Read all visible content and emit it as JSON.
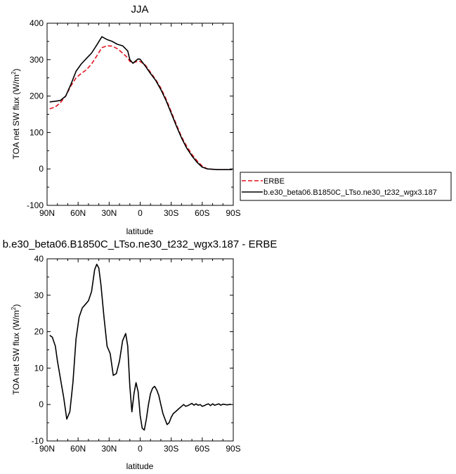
{
  "chart_data": [
    {
      "type": "line",
      "title": "JJA",
      "xlabel": "latitude",
      "ylabel": "TOA net SW flux (W/m",
      "ylabel_sup": "2",
      "ylabel_end": ")",
      "x_tick_labels": [
        "90N",
        "60N",
        "30N",
        "0",
        "30S",
        "60S",
        "90S"
      ],
      "y_tick_labels": [
        "-100",
        "0",
        "100",
        "200",
        "300",
        "400"
      ],
      "xlim": [
        90,
        -90
      ],
      "ylim": [
        -100,
        400
      ],
      "grid": false,
      "legend_position": "right",
      "series": [
        {
          "name": "ERBE",
          "color": "#e0141e",
          "dash": "dashed",
          "x": [
            87.5,
            82,
            77,
            72,
            67,
            62,
            57,
            52,
            47,
            42,
            37,
            32,
            27,
            22,
            17,
            12,
            10,
            7,
            5,
            2,
            0,
            -5,
            -10,
            -15,
            -20,
            -25,
            -30,
            -35,
            -40,
            -45,
            -50,
            -55,
            -60,
            -65,
            -70,
            -75,
            -80,
            -85,
            -89
          ],
          "y": [
            165,
            170,
            182,
            200,
            228,
            250,
            262,
            272,
            288,
            310,
            333,
            338,
            337,
            330,
            318,
            305,
            295,
            292,
            293,
            296,
            295,
            285,
            265,
            245,
            222,
            192,
            157,
            122,
            88,
            62,
            40,
            22,
            8,
            0,
            -1,
            -2,
            -2,
            -2,
            -2
          ]
        },
        {
          "name": "b.e30_beta06.B1850C_LTso.ne30_t232_wgx3.187",
          "color": "#000000",
          "dash": "solid",
          "x": [
            87.5,
            82,
            77,
            72,
            67,
            62,
            57,
            52,
            47,
            42,
            37,
            32,
            27,
            22,
            17,
            12,
            10,
            7,
            5,
            2,
            0,
            -5,
            -10,
            -15,
            -20,
            -25,
            -30,
            -35,
            -40,
            -45,
            -50,
            -55,
            -60,
            -65,
            -70,
            -75,
            -80,
            -85,
            -89
          ],
          "y": [
            184,
            186,
            188,
            200,
            232,
            268,
            288,
            303,
            318,
            340,
            363,
            355,
            350,
            342,
            338,
            324,
            300,
            290,
            295,
            302,
            301,
            282,
            262,
            243,
            218,
            188,
            153,
            118,
            85,
            57,
            36,
            18,
            5,
            0,
            -1,
            -2,
            -2,
            -2,
            -2
          ]
        }
      ]
    },
    {
      "type": "line",
      "title": "b.e30_beta06.B1850C_LTso.ne30_t232_wgx3.187 - ERBE",
      "xlabel": "latitude",
      "ylabel": "TOA net SW flux (W/m",
      "ylabel_sup": "2",
      "ylabel_end": ")",
      "x_tick_labels": [
        "90N",
        "60N",
        "30N",
        "0",
        "30S",
        "60S",
        "90S"
      ],
      "y_tick_labels": [
        "-10",
        "0",
        "10",
        "20",
        "30",
        "40"
      ],
      "xlim": [
        90,
        -90
      ],
      "ylim": [
        -10,
        40
      ],
      "grid": false,
      "series": [
        {
          "color": "#000000",
          "dash": "solid",
          "x": [
            87.5,
            85,
            82,
            80,
            77,
            74,
            71,
            68,
            65,
            62,
            59,
            56,
            53,
            50,
            47,
            44,
            42,
            40,
            38,
            35,
            32,
            29,
            26,
            23,
            20,
            17,
            14,
            12,
            10,
            8,
            6,
            4,
            2,
            0,
            -2,
            -4,
            -6,
            -8,
            -10,
            -12,
            -14,
            -16,
            -18,
            -20,
            -22,
            -24,
            -26,
            -28,
            -30,
            -32,
            -34,
            -36,
            -38,
            -40,
            -42,
            -44,
            -46,
            -48,
            -50,
            -52,
            -54,
            -56,
            -58,
            -60,
            -62,
            -64,
            -66,
            -68,
            -70,
            -72,
            -74,
            -76,
            -78,
            -80,
            -82,
            -84,
            -86,
            -88
          ],
          "y": [
            19,
            18.5,
            16,
            12,
            7,
            2,
            -4,
            -2,
            6,
            18,
            24,
            26.5,
            27.5,
            28.5,
            31,
            37,
            38.5,
            37.5,
            33,
            24,
            16,
            14,
            8,
            8.5,
            12,
            17.5,
            19.5,
            16,
            5,
            -2,
            3,
            6,
            3.5,
            -3,
            -6.5,
            -7,
            -4,
            0,
            3,
            4.5,
            5,
            4,
            2.5,
            0,
            -2.5,
            -4,
            -5.5,
            -5,
            -3.5,
            -2.5,
            -2,
            -1.5,
            -1,
            -0.5,
            0,
            -0.5,
            -0.3,
            0,
            0.3,
            -0.2,
            0.2,
            -0.2,
            0,
            -0.5,
            -0.3,
            0,
            0.2,
            -0.3,
            0.2,
            -0.2,
            0,
            0.2,
            -0.2,
            0.1,
            0,
            -0.1,
            0,
            0
          ]
        }
      ]
    }
  ]
}
